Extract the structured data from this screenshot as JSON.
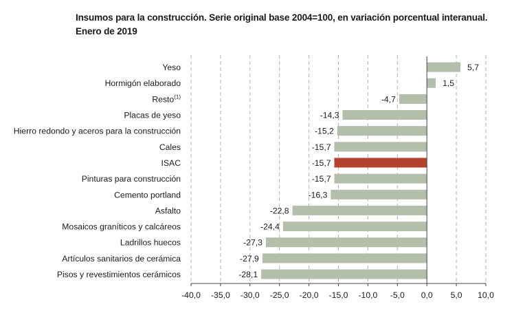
{
  "chart_data": {
    "type": "bar",
    "orientation": "horizontal",
    "title": "Insumos para la construcción. Serie original base 2004=100, en variación porcentual interanual.",
    "subtitle": "Enero de 2019",
    "categories": [
      "Yeso",
      "Hormigón elaborado",
      "Resto",
      "Placas de yeso",
      "Hierro redondo y aceros para la construcción",
      "Cales",
      "ISAC",
      "Pinturas para construcción",
      "Cemento portland",
      "Asfalto",
      "Mosaicos graníticos y calcáreos",
      "Ladrillos huecos",
      "Artículos sanitarios de cerámica",
      "Pisos y revestimientos cerámicos"
    ],
    "category_superscripts": [
      "",
      "",
      "(1)",
      "",
      "",
      "",
      "",
      "",
      "",
      "",
      "",
      "",
      "",
      ""
    ],
    "values": [
      5.7,
      1.5,
      -4.7,
      -14.3,
      -15.2,
      -15.7,
      -15.7,
      -15.7,
      -16.3,
      -22.8,
      -24.4,
      -27.3,
      -27.9,
      -28.1
    ],
    "value_labels": [
      "5,7",
      "1,5",
      "-4,7",
      "-14,3",
      "-15,2",
      "-15,7",
      "-15,7",
      "-15,7",
      "-16,3",
      "-22,8",
      "-24,4",
      "-27,3",
      "-27,9",
      "-28,1"
    ],
    "highlight_category": "ISAC",
    "xlim": [
      -40,
      10
    ],
    "xticks": [
      -40,
      -35,
      -30,
      -25,
      -20,
      -15,
      -10,
      -5,
      0,
      5,
      10
    ],
    "xtick_labels": [
      "-40,0",
      "-35,0",
      "-30,0",
      "-25,0",
      "-20,0",
      "-15,0",
      "-10,0",
      "-5,0",
      "0,0",
      "5,0",
      "10,0"
    ],
    "grid": "vertical dashed",
    "legend": "none",
    "colors": {
      "bar": "#b3bfaa",
      "highlight": "#b5412f",
      "grid": "#b0b0b0",
      "axis": "#444444"
    }
  }
}
